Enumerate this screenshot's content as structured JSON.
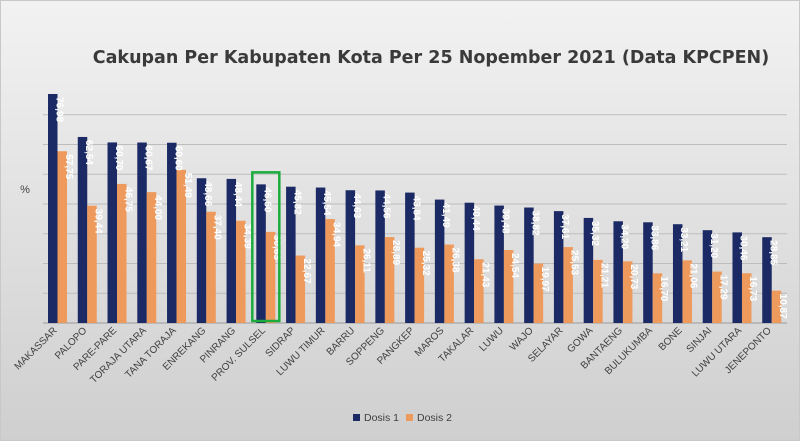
{
  "chart_data": {
    "type": "bar",
    "title": "Cakupan  Per Kabupaten Kota  Per 25 Nopember  2021 (Data KPCPEN)",
    "ylabel": "%",
    "xlabel": "",
    "ylim": [
      0,
      80
    ],
    "grid": true,
    "legend_position": "bottom",
    "categories": [
      "MAKASSAR",
      "PALOPO",
      "PARE-PARE",
      "TORAJA UTARA",
      "TANA TORAJA",
      "ENREKANG",
      "PINRANG",
      "PROV. SULSEL",
      "SIDRAP",
      "LUWU TIMUR",
      "BARRU",
      "SOPPENG",
      "PANGKEP",
      "MAROS",
      "TAKALAR",
      "LUWU",
      "WAJO",
      "SELAYAR",
      "GOWA",
      "BANTAENG",
      "BULUKUMBA",
      "BONE",
      "SINJAI",
      "LUWU UTARA",
      "JENEPONTO"
    ],
    "series": [
      {
        "name": "Dosis 1",
        "color": "#1b2a64",
        "values": [
          76.98,
          62.54,
          60.7,
          60.67,
          60.6,
          48.66,
          48.44,
          46.6,
          45.82,
          45.54,
          44.63,
          44.56,
          43.84,
          41.49,
          40.44,
          39.48,
          38.82,
          37.61,
          35.32,
          34.2,
          33.86,
          33.21,
          31.2,
          30.46,
          28.85
        ],
        "labels": [
          "76,98",
          "62,54",
          "60,70",
          "60,67",
          "60,60",
          "48,66",
          "48,44",
          "46,60",
          "45,82",
          "45,54",
          "44,63",
          "44,56",
          "43,84",
          "41,49",
          "40,44",
          "39,48",
          "38,82",
          "37,61",
          "35,32",
          "34,20",
          "33,86",
          "33,21",
          "31,20",
          "30,46",
          "28,85"
        ]
      },
      {
        "name": "Dosis 2",
        "color": "#ee9a5c",
        "values": [
          57.75,
          39.44,
          46.75,
          44.0,
          51.49,
          37.4,
          34.39,
          30.63,
          22.67,
          34.94,
          26.11,
          28.89,
          25.32,
          26.38,
          21.43,
          24.54,
          19.97,
          25.53,
          21.21,
          20.73,
          16.7,
          21.06,
          17.29,
          16.73,
          10.87
        ],
        "labels": [
          "57,75",
          "39,44",
          "46,75",
          "44,00",
          "51,49",
          "37,40",
          "34,39",
          "30,63",
          "22,67",
          "34,94",
          "26,11",
          "28,89",
          "25,32",
          "26,38",
          "21,43",
          "24,54",
          "19,97",
          "25,53",
          "21,21",
          "20,73",
          "16,70",
          "21,06",
          "17,29",
          "16,73",
          "10,87"
        ]
      }
    ],
    "highlight": {
      "category": "PROV. SULSEL",
      "color": "#1aab3c"
    }
  }
}
